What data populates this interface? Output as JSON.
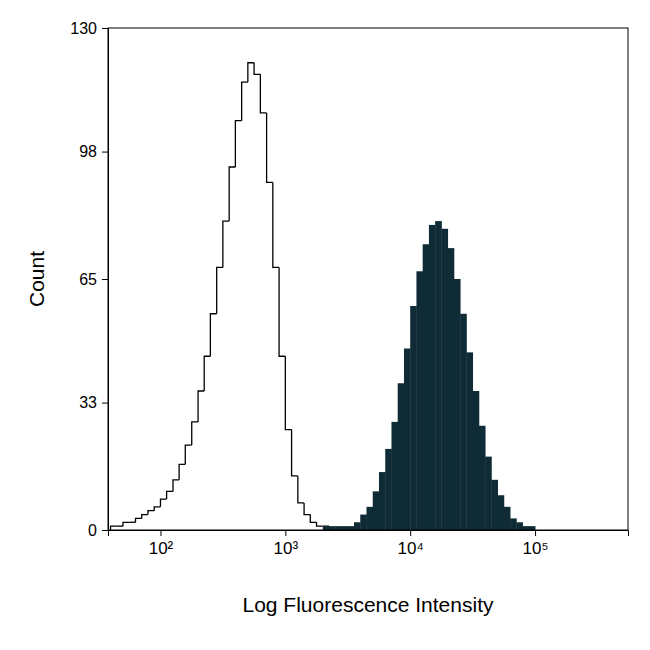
{
  "chart_data": {
    "type": "histogram",
    "x_label": "Log Fluorescence Intensity",
    "y_label": "Count",
    "log": "x",
    "xlim": [
      38,
      555000
    ],
    "xticks": [
      {
        "value": 100,
        "label": "10²"
      },
      {
        "value": 1000,
        "label": "10³"
      },
      {
        "value": 10000,
        "label": "10⁴"
      },
      {
        "value": 100000,
        "label": "10⁵"
      }
    ],
    "ylim": [
      0,
      130
    ],
    "yticks": [
      0,
      33,
      65,
      98,
      130
    ],
    "series": [
      {
        "type": "step",
        "color": "#000000",
        "bins": [
          39.8,
          44.7,
          50.1,
          56.2,
          63.1,
          70.8,
          79.4,
          89.1,
          100,
          112,
          126,
          141,
          158,
          178,
          200,
          224,
          251,
          282,
          316,
          355,
          398,
          447,
          501,
          562,
          631,
          708,
          794,
          891,
          1000,
          1122,
          1259,
          1413,
          1585,
          1778,
          1995,
          2239,
          2512
        ],
        "values": [
          1,
          1,
          2,
          2,
          3,
          4,
          5,
          6,
          8,
          10,
          13,
          17,
          22,
          28,
          36,
          45,
          56,
          68,
          80,
          94,
          106,
          116,
          121,
          118,
          108,
          90,
          68,
          45,
          26,
          14,
          7,
          4,
          2,
          1,
          1,
          0
        ]
      },
      {
        "type": "filled",
        "color": "#0f2b36",
        "bins": [
          1585,
          1778,
          1995,
          2239,
          2512,
          2818,
          3162,
          3548,
          3981,
          4467,
          5012,
          5623,
          6310,
          7079,
          7943,
          8913,
          10000,
          11220,
          12589,
          14125,
          15849,
          17783,
          19953,
          22387,
          25119,
          28184,
          31623,
          35481,
          39811,
          44668,
          50119,
          56234,
          63096,
          70795,
          79433,
          89125,
          100000,
          112202,
          125893,
          141254,
          158489,
          177828,
          199526,
          223872,
          251189
        ],
        "values": [
          0,
          0,
          1,
          1,
          1,
          1,
          1,
          2,
          4,
          6,
          10,
          15,
          21,
          28,
          38,
          47,
          58,
          67,
          74,
          79,
          80,
          78,
          73,
          65,
          56,
          46,
          36,
          27,
          19,
          13,
          9,
          6,
          3,
          2,
          1,
          1,
          0,
          0,
          0,
          0,
          0,
          0,
          0,
          0
        ]
      }
    ]
  }
}
